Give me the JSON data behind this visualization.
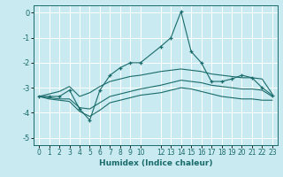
{
  "xlabel": "Humidex (Indice chaleur)",
  "bg_color": "#c8eaf0",
  "grid_color": "#ffffff",
  "line_color": "#1a6b6b",
  "xlim": [
    -0.5,
    23.5
  ],
  "ylim": [
    -5.3,
    0.3
  ],
  "xtick_labels": [
    "0",
    "1",
    "2",
    "3",
    "4",
    "5",
    "6",
    "7",
    "8",
    "9",
    "10",
    "12",
    "13",
    "14",
    "15",
    "16",
    "17",
    "18",
    "19",
    "20",
    "21",
    "22",
    "23"
  ],
  "xtick_pos": [
    0,
    1,
    2,
    3,
    4,
    5,
    6,
    7,
    8,
    9,
    10,
    12,
    13,
    14,
    15,
    16,
    17,
    18,
    19,
    20,
    21,
    22,
    23
  ],
  "yticks": [
    0,
    -1,
    -2,
    -3,
    -4,
    -5
  ],
  "x": [
    0,
    1,
    2,
    3,
    4,
    5,
    6,
    7,
    8,
    9,
    10,
    12,
    13,
    14,
    15,
    16,
    17,
    18,
    19,
    20,
    21,
    22,
    23
  ],
  "main_line": [
    -3.35,
    -3.35,
    -3.35,
    -3.1,
    -3.85,
    -4.3,
    -3.1,
    -2.5,
    -2.2,
    -2.0,
    -2.0,
    -1.35,
    -1.0,
    0.05,
    -1.55,
    -2.0,
    -2.75,
    -2.75,
    -2.65,
    -2.5,
    -2.6,
    -3.0,
    -3.3
  ],
  "upper_line": [
    -3.35,
    -3.25,
    -3.15,
    -2.95,
    -3.35,
    -3.2,
    -2.95,
    -2.75,
    -2.65,
    -2.55,
    -2.5,
    -2.35,
    -2.3,
    -2.25,
    -2.3,
    -2.35,
    -2.45,
    -2.5,
    -2.55,
    -2.6,
    -2.6,
    -2.65,
    -3.25
  ],
  "mid_line": [
    -3.35,
    -3.4,
    -3.45,
    -3.45,
    -3.8,
    -3.85,
    -3.6,
    -3.35,
    -3.25,
    -3.15,
    -3.05,
    -2.9,
    -2.8,
    -2.7,
    -2.75,
    -2.8,
    -2.9,
    -2.95,
    -3.0,
    -3.05,
    -3.05,
    -3.1,
    -3.35
  ],
  "lower_line": [
    -3.35,
    -3.45,
    -3.5,
    -3.55,
    -3.95,
    -4.15,
    -3.9,
    -3.6,
    -3.5,
    -3.4,
    -3.3,
    -3.2,
    -3.1,
    -3.0,
    -3.05,
    -3.15,
    -3.25,
    -3.35,
    -3.4,
    -3.45,
    -3.45,
    -3.5,
    -3.5
  ]
}
